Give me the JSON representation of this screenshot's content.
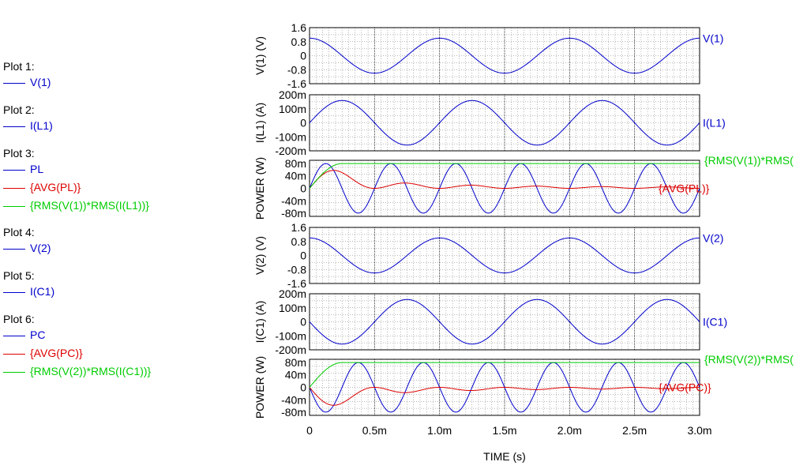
{
  "chart_data": {
    "type": "line",
    "x_axis": {
      "label": "TIME  (s)",
      "range": [
        0,
        0.003
      ],
      "ticks": [
        "0",
        "0.5m",
        "1.0m",
        "1.5m",
        "2.0m",
        "2.5m",
        "3.0m"
      ],
      "tick_values": [
        0,
        0.0005,
        0.001,
        0.0015,
        0.002,
        0.0025,
        0.003
      ]
    },
    "plots": [
      {
        "ylabel": "V(1)  (V)",
        "ylim": [
          -1.6,
          1.6
        ],
        "yticks": [
          "1.6",
          "0.8",
          "0",
          "-0.8",
          "-1.6"
        ],
        "ytick_values": [
          1.6,
          0.8,
          0,
          -0.8,
          -1.6
        ],
        "series": [
          {
            "name": "V(1)",
            "color": "#0000cc",
            "kind": "sine",
            "amplitude": 1.0,
            "freq_hz": 1000,
            "phase": "cos"
          }
        ]
      },
      {
        "ylabel": "I(L1)  (A)",
        "ylim": [
          -0.2,
          0.2
        ],
        "yticks": [
          "200m",
          "100m",
          "0",
          "-100m",
          "-200m"
        ],
        "ytick_values": [
          0.2,
          0.1,
          0,
          -0.1,
          -0.2
        ],
        "series": [
          {
            "name": "I(L1)",
            "color": "#0000cc",
            "kind": "sine",
            "amplitude": 0.159,
            "freq_hz": 1000,
            "phase": "sin"
          }
        ]
      },
      {
        "ylabel": "POWER  (W)",
        "ylim": [
          -0.09,
          0.09
        ],
        "yticks": [
          "80m",
          "40m",
          "0",
          "-40m",
          "-80m"
        ],
        "ytick_values": [
          0.08,
          0.04,
          0,
          -0.04,
          -0.08
        ],
        "series": [
          {
            "name": "PL",
            "color": "#0000cc",
            "kind": "power_sin2",
            "amplitude": 0.0795,
            "freq_hz": 1000
          },
          {
            "name": "{AVG(PL)}",
            "color": "#dd0000",
            "kind": "avg_power_L",
            "amplitude": 0.0795,
            "freq_hz": 1000
          },
          {
            "name": "{RMS(V(1))*RMS(I(L1))}",
            "color": "#00cc00",
            "kind": "rms_product",
            "amplitude": 0.0795,
            "rise_s": 0.00025
          }
        ],
        "right_labels": [
          "{RMS(V(1))*RMS(",
          "{AVG(PL)}"
        ]
      },
      {
        "ylabel": "V(2)  (V)",
        "ylim": [
          -1.6,
          1.6
        ],
        "yticks": [
          "1.6",
          "0.8",
          "0",
          "-0.8",
          "-1.6"
        ],
        "ytick_values": [
          1.6,
          0.8,
          0,
          -0.8,
          -1.6
        ],
        "series": [
          {
            "name": "V(2)",
            "color": "#0000cc",
            "kind": "sine",
            "amplitude": 1.0,
            "freq_hz": 1000,
            "phase": "cos"
          }
        ]
      },
      {
        "ylabel": "I(C1)  (A)",
        "ylim": [
          -0.2,
          0.2
        ],
        "yticks": [
          "200m",
          "100m",
          "0",
          "-100m",
          "-200m"
        ],
        "ytick_values": [
          0.2,
          0.1,
          0,
          -0.1,
          -0.2
        ],
        "series": [
          {
            "name": "I(C1)",
            "color": "#0000cc",
            "kind": "sine",
            "amplitude": 0.159,
            "freq_hz": 1000,
            "phase": "negsin"
          }
        ]
      },
      {
        "ylabel": "POWER  (W)",
        "ylim": [
          -0.09,
          0.09
        ],
        "yticks": [
          "80m",
          "40m",
          "0",
          "-40m",
          "-80m"
        ],
        "ytick_values": [
          0.08,
          0.04,
          0,
          -0.04,
          -0.08
        ],
        "series": [
          {
            "name": "PC",
            "color": "#0000cc",
            "kind": "power_negsin2",
            "amplitude": 0.0795,
            "freq_hz": 1000
          },
          {
            "name": "{AVG(PC)}",
            "color": "#dd0000",
            "kind": "avg_power_C",
            "amplitude": 0.0795,
            "freq_hz": 1000
          },
          {
            "name": "{RMS(V(2))*RMS(I(C1))}",
            "color": "#00cc00",
            "kind": "rms_product",
            "amplitude": 0.0795,
            "rise_s": 0.00025
          }
        ],
        "right_labels": [
          "{RMS(V(2))*RMS(",
          "{AVG(PC)}"
        ]
      }
    ]
  },
  "legend": [
    {
      "title": "Plot 1:",
      "items": [
        {
          "label": "V(1)",
          "color": "#0000cc"
        }
      ]
    },
    {
      "title": "Plot 2:",
      "items": [
        {
          "label": "I(L1)",
          "color": "#0000cc"
        }
      ]
    },
    {
      "title": "Plot 3:",
      "items": [
        {
          "label": "PL",
          "color": "#0000cc"
        },
        {
          "label": "{AVG(PL)}",
          "color": "#dd0000"
        },
        {
          "label": "{RMS(V(1))*RMS(I(L1))}",
          "color": "#00cc00"
        }
      ]
    },
    {
      "title": "Plot 4:",
      "items": [
        {
          "label": "V(2)",
          "color": "#0000cc"
        }
      ]
    },
    {
      "title": "Plot 5:",
      "items": [
        {
          "label": "I(C1)",
          "color": "#0000cc"
        }
      ]
    },
    {
      "title": "Plot 6:",
      "items": [
        {
          "label": "PC",
          "color": "#0000cc"
        },
        {
          "label": "{AVG(PC)}",
          "color": "#dd0000"
        },
        {
          "label": "{RMS(V(2))*RMS(I(C1))}",
          "color": "#00cc00"
        }
      ]
    }
  ]
}
